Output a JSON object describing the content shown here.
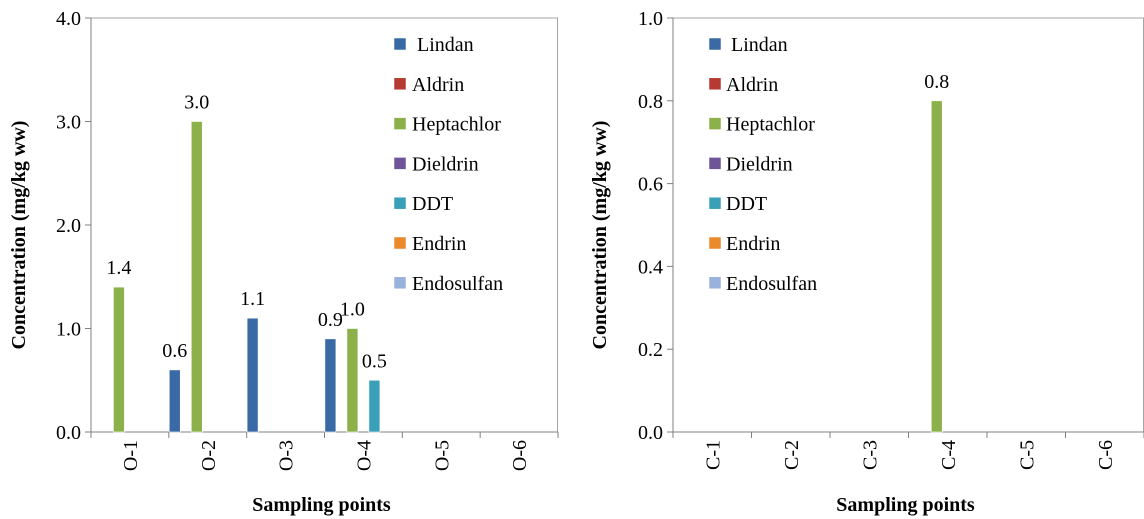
{
  "series_names": [
    "Lindan",
    "Aldrin",
    "Heptachlor",
    "Dieldrin",
    "DDT",
    "Endrin",
    "Endosulfan"
  ],
  "series_colors": [
    "#3a6aa6",
    "#b43a32",
    "#8cb04a",
    "#6e5598",
    "#3aa0b8",
    "#ea8a2a",
    "#98b2dc"
  ],
  "chart_data": [
    {
      "type": "bar",
      "xlabel": "Sampling points",
      "ylabel": "Concentration (mg/kg  ww)",
      "categories": [
        "O-1",
        "O-2",
        "O-3",
        "O-4",
        "O-5",
        "O-6"
      ],
      "ylim": [
        0,
        4
      ],
      "yticks": [
        "0.0",
        "1.0",
        "2.0",
        "3.0",
        "4.0"
      ],
      "legend_position": "top-right, inside plot",
      "series": [
        {
          "name": "Lindan",
          "values": [
            0,
            0.6,
            1.1,
            0.9,
            0,
            0
          ]
        },
        {
          "name": "Aldrin",
          "values": [
            0,
            0,
            0,
            0,
            0,
            0
          ]
        },
        {
          "name": "Heptachlor",
          "values": [
            1.4,
            3.0,
            0,
            1.0,
            0,
            0
          ]
        },
        {
          "name": "Dieldrin",
          "values": [
            0,
            0,
            0,
            0,
            0,
            0
          ]
        },
        {
          "name": "DDT",
          "values": [
            0,
            0,
            0,
            0.5,
            0,
            0
          ]
        },
        {
          "name": "Endrin",
          "values": [
            0,
            0,
            0,
            0,
            0,
            0
          ]
        },
        {
          "name": "Endosulfan",
          "values": [
            0,
            0,
            0,
            0,
            0,
            0
          ]
        }
      ],
      "data_labels": [
        {
          "category": "O-1",
          "series": "Heptachlor",
          "text": "1.4"
        },
        {
          "category": "O-2",
          "series": "Lindan",
          "text": "0.6"
        },
        {
          "category": "O-2",
          "series": "Heptachlor",
          "text": "3.0"
        },
        {
          "category": "O-3",
          "series": "Lindan",
          "text": "1.1"
        },
        {
          "category": "O-4",
          "series": "Lindan",
          "text": "0.9"
        },
        {
          "category": "O-4",
          "series": "Heptachlor",
          "text": "1.0"
        },
        {
          "category": "O-4",
          "series": "DDT",
          "text": "0.5"
        }
      ]
    },
    {
      "type": "bar",
      "xlabel": "Sampling points",
      "ylabel": "Concentration (mg/kg  ww)",
      "categories": [
        "C-1",
        "C-2",
        "C-3",
        "C-4",
        "C-5",
        "C-6"
      ],
      "ylim": [
        0,
        1
      ],
      "yticks": [
        "0.0",
        "0.2",
        "0.4",
        "0.6",
        "0.8",
        "1.0"
      ],
      "legend_position": "top-left, inside plot",
      "series": [
        {
          "name": "Lindan",
          "values": [
            0,
            0,
            0,
            0,
            0,
            0
          ]
        },
        {
          "name": "Aldrin",
          "values": [
            0,
            0,
            0,
            0,
            0,
            0
          ]
        },
        {
          "name": "Heptachlor",
          "values": [
            0,
            0,
            0,
            0.8,
            0,
            0
          ]
        },
        {
          "name": "Dieldrin",
          "values": [
            0,
            0,
            0,
            0,
            0,
            0
          ]
        },
        {
          "name": "DDT",
          "values": [
            0,
            0,
            0,
            0,
            0,
            0
          ]
        },
        {
          "name": "Endrin",
          "values": [
            0,
            0,
            0,
            0,
            0,
            0
          ]
        },
        {
          "name": "Endosulfan",
          "values": [
            0,
            0,
            0,
            0,
            0,
            0
          ]
        }
      ],
      "data_labels": [
        {
          "category": "C-4",
          "series": "Heptachlor",
          "text": "0.8"
        }
      ]
    }
  ]
}
